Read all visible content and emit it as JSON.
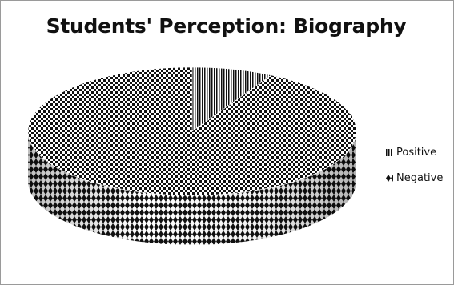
{
  "chart_data": {
    "type": "pie",
    "title": "Students' Perception: Biography",
    "legend_position": "right",
    "series": [
      {
        "name": "Positive",
        "value": 8,
        "pattern": "vertical-stripes"
      },
      {
        "name": "Negative",
        "value": 92,
        "pattern": "checker-dots"
      }
    ]
  }
}
